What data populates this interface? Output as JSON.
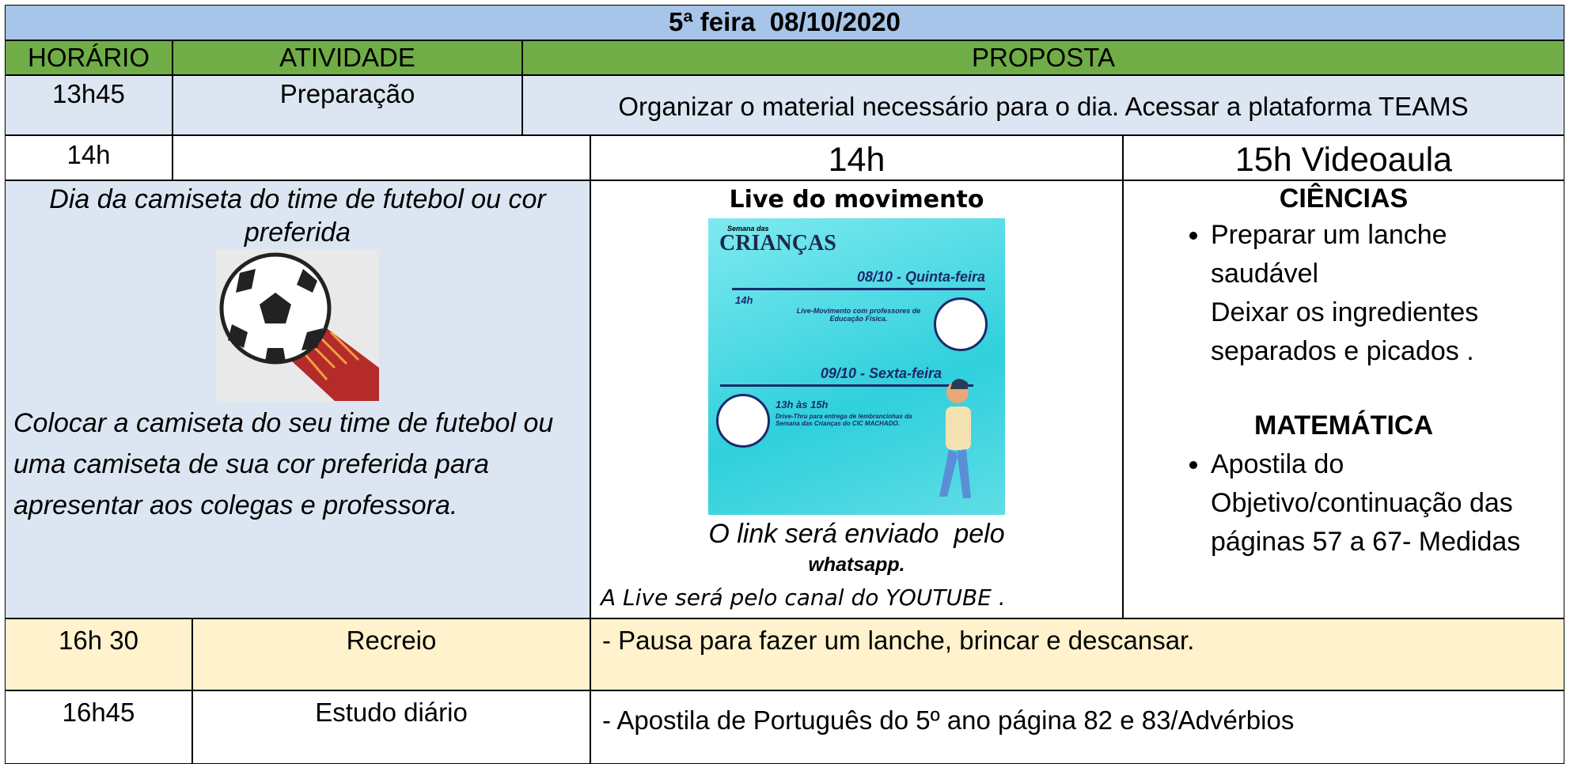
{
  "header": {
    "title": "5ª feira  08/10/2020"
  },
  "table": {
    "columns": [
      "HORÁRIO",
      "ATIVIDADE",
      "PROPOSTA"
    ],
    "prep": {
      "time": "13h45",
      "activity": "Preparação",
      "proposal": "Organizar o material necessário para o dia. Acessar a plataforma TEAMS"
    },
    "slot": {
      "time": "14h",
      "live_time": "14h",
      "video_time": "15h Videoaula"
    },
    "shirt_day": {
      "title": "Dia da camiseta do time de futebol ou cor preferida",
      "text": "Colocar a camiseta do seu time de futebol ou uma camiseta de sua cor preferida para apresentar aos colegas e professora."
    },
    "live": {
      "title": "Live do movimento",
      "poster": {
        "brand": "Semana das",
        "name": "CRIANÇAS",
        "day1": "08/10 - Quinta-feira",
        "day1_time": "14h",
        "day1_text": "Live-Movimento com professores de Educação Física.",
        "day2": "09/10 - Sexta-feira",
        "day2_time": "13h às 15h",
        "day2_text": "Drive-Thru para entrega de lembrancinhas da Semana das Crianças do CIC MACHADO."
      },
      "link": "O link será enviado  pelo",
      "app": "whatsapp.",
      "note": "A Live será pelo canal do YOUTUBE ."
    },
    "videoaula": {
      "subjects": [
        {
          "name": "CIÊNCIAS",
          "lines": [
            "Preparar um lanche saudável",
            "Deixar os ingredientes separados e picados ."
          ]
        },
        {
          "name": "MATEMÁTICA",
          "lines": [
            "Apostila do Objetivo/continuação das páginas 57 a 67- Medidas"
          ]
        }
      ]
    },
    "recess": {
      "time": "16h 30",
      "activity": "Recreio",
      "proposal": "- Pausa para fazer um lanche, brincar e descansar."
    },
    "study": {
      "time": "16h45",
      "activity": "Estudo diário",
      "proposal": "- Apostila de Português do 5º ano página 82 e 83/Advérbios"
    }
  }
}
